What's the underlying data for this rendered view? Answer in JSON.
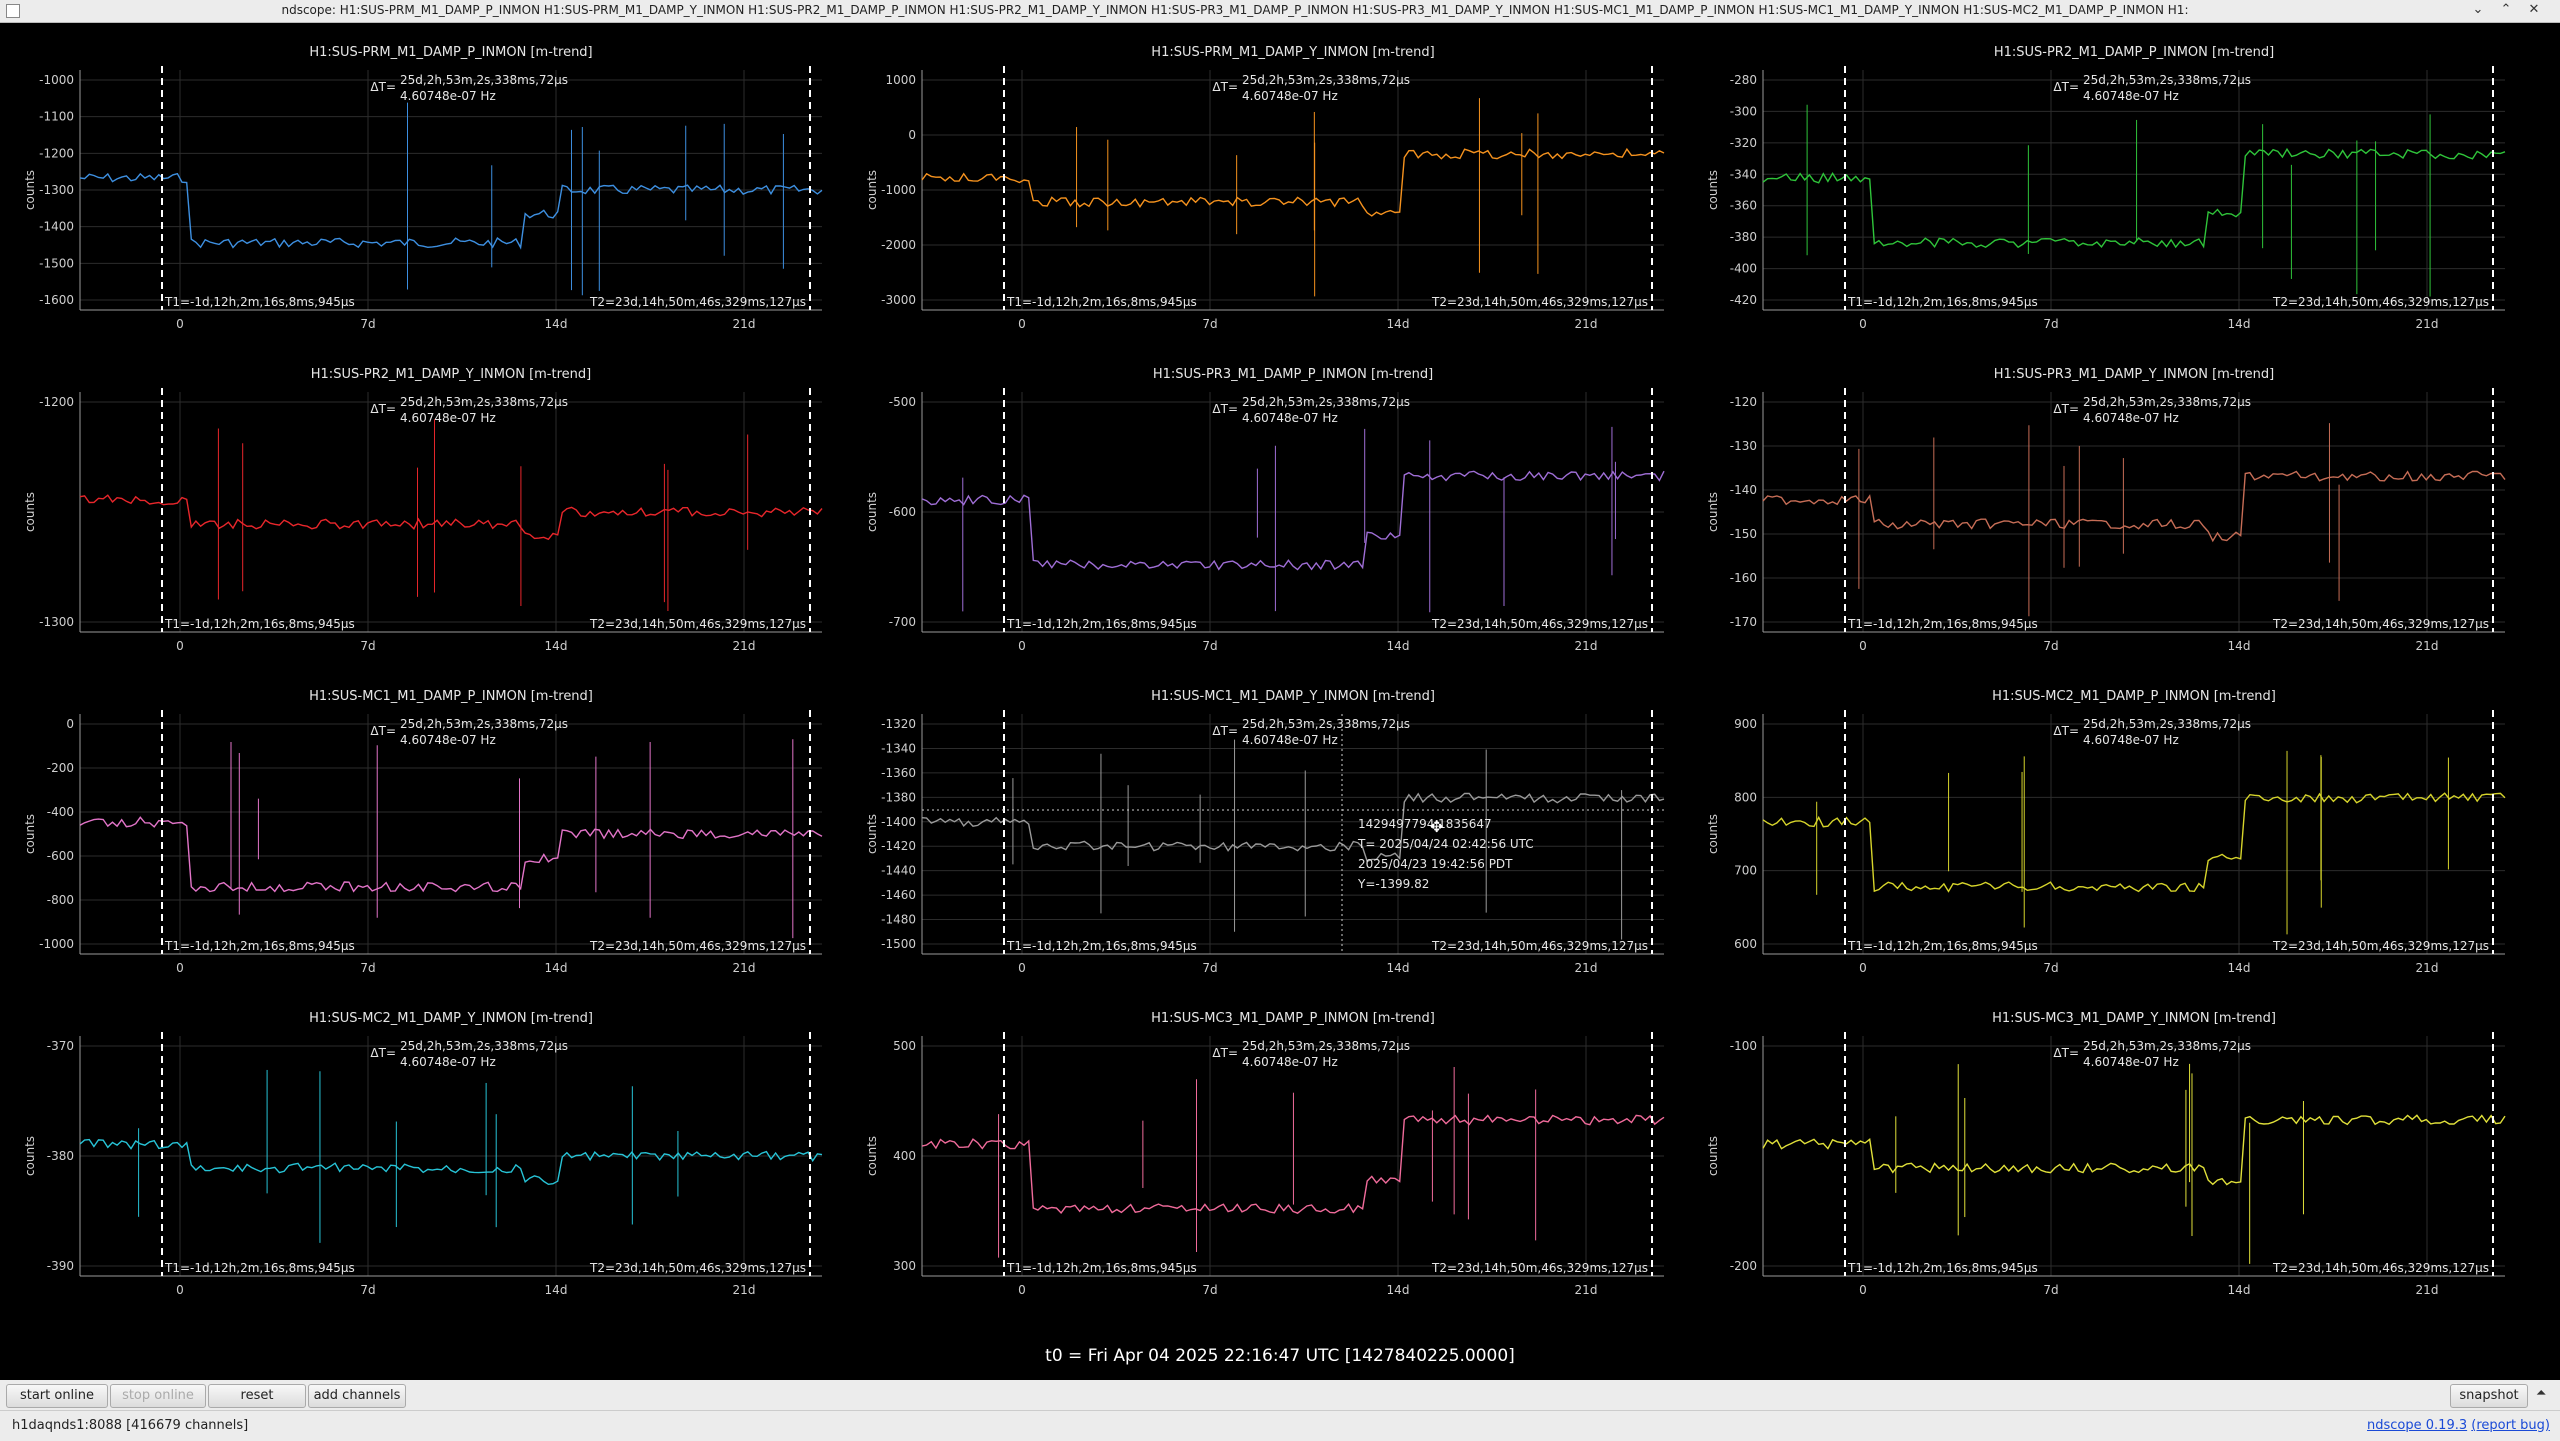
{
  "window": {
    "title": "ndscope: H1:SUS-PRM_M1_DAMP_P_INMON H1:SUS-PRM_M1_DAMP_Y_INMON H1:SUS-PR2_M1_DAMP_P_INMON H1:SUS-PR2_M1_DAMP_Y_INMON H1:SUS-PR3_M1_DAMP_P_INMON H1:SUS-PR3_M1_DAMP_Y_INMON H1:SUS-MC1_M1_DAMP_P_INMON H1:SUS-MC1_M1_DAMP_Y_INMON H1:SUS-MC2_M1_DAMP_P_INMON H1:",
    "controls": {
      "minimize": "⌄",
      "maximize": "⌃",
      "close": "✕"
    }
  },
  "cursor_labels": {
    "t1": "T1=-1d,12h,2m,16s,8ms,945µs",
    "t2": "T2=23d,14h,50m,46s,329ms,127µs",
    "delta_prefix": "ΔT=",
    "delta_time": "25d,2h,53m,2s,338ms,72µs",
    "delta_freq": "4.60748e-07 Hz",
    "ylabel": "counts",
    "x_ticks": [
      "0",
      "7d",
      "14d",
      "21d"
    ]
  },
  "plots": [
    {
      "title": "H1:SUS-PRM_M1_DAMP_P_INMON [m-trend]",
      "color": "#3d8fe0",
      "ticks": [
        "-1000",
        "-1100",
        "-1200",
        "-1300",
        "-1400",
        "-1500",
        "-1600"
      ]
    },
    {
      "title": "H1:SUS-PRM_M1_DAMP_Y_INMON [m-trend]",
      "color": "#f5921e",
      "ticks": [
        "1000",
        "0",
        "-1000",
        "-2000",
        "-3000"
      ]
    },
    {
      "title": "H1:SUS-PR2_M1_DAMP_P_INMON [m-trend]",
      "color": "#2fc43a",
      "ticks": [
        "-280",
        "-300",
        "-320",
        "-340",
        "-360",
        "-380",
        "-400",
        "-420"
      ]
    },
    {
      "title": "H1:SUS-PR2_M1_DAMP_Y_INMON [m-trend]",
      "color": "#e8262b",
      "ticks": [
        "-1200",
        "-1300"
      ]
    },
    {
      "title": "H1:SUS-PR3_M1_DAMP_P_INMON [m-trend]",
      "color": "#9f6ed6",
      "ticks": [
        "-500",
        "-600",
        "-700"
      ]
    },
    {
      "title": "H1:SUS-PR3_M1_DAMP_Y_INMON [m-trend]",
      "color": "#c66d56",
      "ticks": [
        "-120",
        "-130",
        "-140",
        "-150",
        "-160",
        "-170"
      ]
    },
    {
      "title": "H1:SUS-MC1_M1_DAMP_P_INMON [m-trend]",
      "color": "#e274c8",
      "ticks": [
        "0",
        "-200",
        "-400",
        "-600",
        "-800",
        "-1000"
      ]
    },
    {
      "title": "H1:SUS-MC1_M1_DAMP_Y_INMON [m-trend]",
      "color": "#9a9a9a",
      "ticks": [
        "-1320",
        "-1340",
        "-1360",
        "-1380",
        "-1400",
        "-1420",
        "-1440",
        "-1460",
        "-1480",
        "-1500"
      ]
    },
    {
      "title": "H1:SUS-MC2_M1_DAMP_P_INMON [m-trend]",
      "color": "#d6d42b",
      "ticks": [
        "900",
        "800",
        "700",
        "600"
      ]
    },
    {
      "title": "H1:SUS-MC2_M1_DAMP_Y_INMON [m-trend]",
      "color": "#27c3d6",
      "ticks": [
        "-370",
        "-380",
        "-390"
      ]
    },
    {
      "title": "H1:SUS-MC3_M1_DAMP_P_INMON [m-trend]",
      "color": "#f06b9b",
      "ticks": [
        "500",
        "400",
        "300"
      ]
    },
    {
      "title": "H1:SUS-MC3_M1_DAMP_Y_INMON [m-trend]",
      "color": "#e0e03a",
      "ticks": [
        "-100",
        "-200"
      ]
    }
  ],
  "crosshair": {
    "line1": "1429497794.1835647",
    "line2": "T= 2025/04/24 02:42:56 UTC",
    "line3": "2025/04/23 19:42:56 PDT",
    "line4": "Y=-1399.82"
  },
  "t0": "t0 = Fri Apr 04 2025 22:16:47 UTC [1427840225.0000]",
  "toolbar": {
    "start_online": "start online",
    "stop_online": "stop online",
    "reset": "reset",
    "add_channels": "add channels",
    "snapshot": "snapshot",
    "expand": "⏶"
  },
  "status": {
    "server": "h1daqnds1:8088  [416679 channels]",
    "version_link": "ndscope 0.19.3",
    "report_bug": "(report bug)"
  }
}
